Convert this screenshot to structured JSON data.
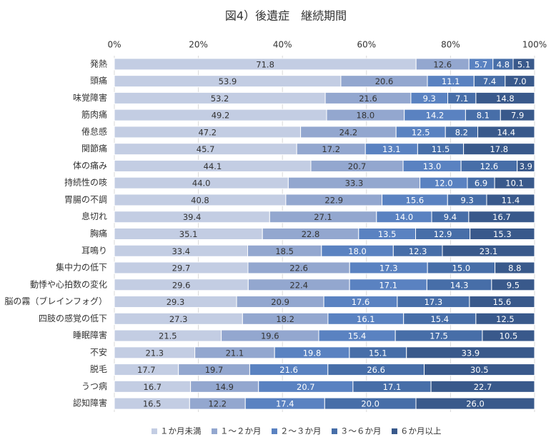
{
  "chart_data": {
    "type": "bar",
    "orientation": "horizontal",
    "stack": "percent",
    "title": "図4）後遺症　継続期間",
    "categories": [
      "発熱",
      "頭痛",
      "味覚障害",
      "筋肉痛",
      "倦怠感",
      "関節痛",
      "体の痛み",
      "持続性の咳",
      "胃腸の不調",
      "息切れ",
      "胸痛",
      "耳鳴り",
      "集中力の低下",
      "動悸や心拍数の変化",
      "脳の霧（ブレインフォグ）",
      "四肢の感覚の低下",
      "睡眠障害",
      "不安",
      "脱毛",
      "うつ病",
      "認知障害"
    ],
    "series": [
      {
        "name": "１か月未満",
        "color": "#c3cde3",
        "label_color": "#333333",
        "values": [
          71.8,
          53.9,
          53.2,
          49.2,
          47.2,
          45.7,
          44.1,
          44.0,
          40.8,
          39.4,
          35.1,
          33.4,
          29.7,
          29.6,
          29.3,
          27.3,
          21.5,
          21.3,
          17.7,
          16.7,
          16.5
        ],
        "value_labels": [
          "71.8",
          "53.9",
          "53.2",
          "49.2",
          "47.2",
          "45.7",
          "44.1",
          "44.0",
          "40.8",
          "39.4",
          "35.1",
          "33.4",
          "29.7",
          "29.6",
          "29.3",
          "27.3",
          "21.5",
          "21.3",
          "17.7",
          "16.7",
          "16.5"
        ]
      },
      {
        "name": "１～２か月",
        "color": "#93a7cf",
        "label_color": "#333333",
        "values": [
          12.6,
          20.6,
          21.6,
          18.0,
          24.2,
          17.2,
          20.7,
          33.3,
          22.9,
          27.1,
          22.8,
          18.5,
          22.6,
          22.4,
          20.9,
          18.2,
          19.6,
          21.1,
          19.7,
          14.9,
          12.2
        ],
        "value_labels": [
          "12.6",
          "20.6",
          "21.6",
          "18.0",
          "24.2",
          "17.2",
          "20.7",
          "33.3",
          "22.9",
          "27.1",
          "22.8",
          "18.5",
          "22.6",
          "22.4",
          "20.9",
          "18.2",
          "19.6",
          "21.1",
          "19.7",
          "14.9",
          "12.2"
        ]
      },
      {
        "name": "２～３か月",
        "color": "#5a82c1",
        "label_color": "#ffffff",
        "values": [
          5.7,
          11.1,
          9.3,
          14.2,
          12.5,
          13.1,
          13.0,
          12.0,
          15.6,
          14.0,
          13.5,
          18.0,
          17.3,
          17.1,
          17.6,
          16.1,
          15.4,
          19.8,
          21.6,
          20.7,
          17.4
        ],
        "value_labels": [
          "5.7",
          "11.1",
          "9.3",
          "14.2",
          "12.5",
          "13.1",
          "13.0",
          "12.0",
          "15.6",
          "14.0",
          "13.5",
          "18.0",
          "17.3",
          "17.1",
          "17.6",
          "16.1",
          "15.4",
          "19.8",
          "21.6",
          "20.7",
          "17.4"
        ]
      },
      {
        "name": "３～６か月",
        "color": "#476ea8",
        "label_color": "#ffffff",
        "values": [
          4.8,
          7.4,
          7.1,
          8.1,
          8.2,
          11.5,
          12.6,
          6.9,
          9.3,
          9.4,
          12.9,
          12.3,
          15.0,
          14.3,
          17.3,
          15.4,
          17.5,
          15.1,
          26.6,
          17.1,
          20.0
        ],
        "value_labels": [
          "4.8",
          "7.4",
          "7.1",
          "8.1",
          "8.2",
          "11.5",
          "12.6",
          "6.9",
          "9.3",
          "9.4",
          "12.9",
          "12.3",
          "15.0",
          "14.3",
          "17.3",
          "15.4",
          "17.5",
          "15.1",
          "26.6",
          "17.1",
          "20.0"
        ]
      },
      {
        "name": "６か月以上",
        "color": "#39598b",
        "label_color": "#ffffff",
        "values": [
          5.1,
          7.0,
          14.8,
          7.9,
          14.4,
          17.8,
          3.9,
          10.1,
          11.4,
          16.7,
          15.3,
          23.1,
          8.8,
          9.5,
          15.6,
          12.5,
          10.5,
          33.9,
          30.5,
          22.7,
          26.0
        ],
        "value_labels": [
          "5.1",
          "7.0",
          "14.8",
          "7.9",
          "14.4",
          "17.8",
          "3.9",
          "10.1",
          "11.4",
          "16.7",
          "15.3",
          "23.1",
          "8.8",
          "9.5",
          "15.6",
          "12.5",
          "10.5",
          "33.9",
          "30.5",
          "22.7",
          "26.0"
        ]
      }
    ],
    "xlim": [
      0,
      100
    ],
    "xticks": [
      {
        "value": 0,
        "label": "0%"
      },
      {
        "value": 20,
        "label": "20%"
      },
      {
        "value": 40,
        "label": "40%"
      },
      {
        "value": 60,
        "label": "60%"
      },
      {
        "value": 80,
        "label": "80%"
      },
      {
        "value": 100,
        "label": "100%"
      }
    ],
    "grid": true,
    "legend": "bottom"
  }
}
